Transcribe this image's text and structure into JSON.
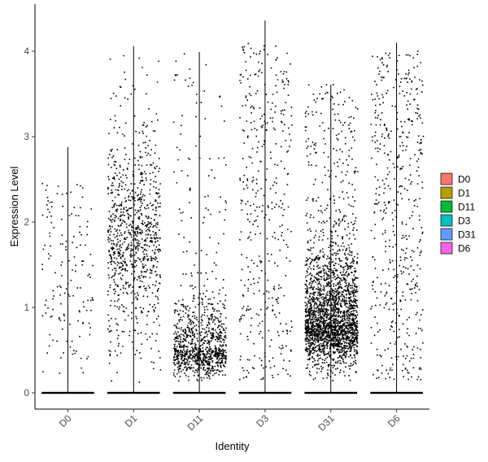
{
  "chart_data": {
    "type": "scatter",
    "subtype": "violin-jitter",
    "xlabel": "Identity",
    "ylabel": "Expression Level",
    "categories": [
      "D0",
      "D1",
      "D11",
      "D3",
      "D31",
      "D6"
    ],
    "ylim": [
      0,
      4.5
    ],
    "yticks": [
      0,
      1,
      2,
      3,
      4
    ],
    "grid": false,
    "legend": {
      "placement": "right"
    },
    "series": [
      {
        "name": "D0",
        "color": "#F8766D",
        "max": 2.88,
        "zero_fraction": 0.7,
        "nonzero_points": 150,
        "dist": "uniform",
        "range": [
          0.2,
          2.45
        ]
      },
      {
        "name": "D1",
        "color": "#B79F00",
        "max": 4.06,
        "zero_fraction": 0.5,
        "nonzero_points": 900,
        "dist": "normal",
        "mean": 1.85,
        "sd": 0.55
      },
      {
        "name": "D11",
        "color": "#00BA38",
        "max": 3.99,
        "zero_fraction": 0.55,
        "nonzero_points": 1000,
        "dist": "skew",
        "mean": 0.5,
        "sd": 0.3
      },
      {
        "name": "D3",
        "color": "#00BFC4",
        "max": 4.36,
        "zero_fraction": 0.6,
        "nonzero_points": 400,
        "dist": "uniform",
        "range": [
          0.15,
          4.1
        ]
      },
      {
        "name": "D31",
        "color": "#619CFF",
        "max": 3.61,
        "zero_fraction": 0.3,
        "nonzero_points": 2400,
        "dist": "skew",
        "mean": 0.8,
        "sd": 0.45
      },
      {
        "name": "D6",
        "color": "#F564E3",
        "max": 4.1,
        "zero_fraction": 0.55,
        "nonzero_points": 500,
        "dist": "uniform",
        "range": [
          0.15,
          4.0
        ]
      }
    ]
  }
}
